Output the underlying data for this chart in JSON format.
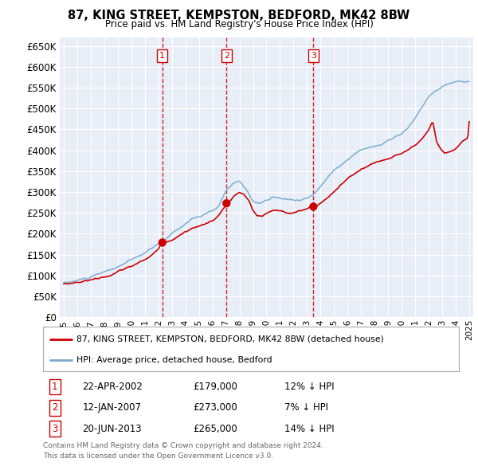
{
  "title": "87, KING STREET, KEMPSTON, BEDFORD, MK42 8BW",
  "subtitle": "Price paid vs. HM Land Registry's House Price Index (HPI)",
  "legend_label_red": "87, KING STREET, KEMPSTON, BEDFORD, MK42 8BW (detached house)",
  "legend_label_blue": "HPI: Average price, detached house, Bedford",
  "footnote1": "Contains HM Land Registry data © Crown copyright and database right 2024.",
  "footnote2": "This data is licensed under the Open Government Licence v3.0.",
  "transactions": [
    {
      "num": "1",
      "date": "22-APR-2002",
      "price": "£179,000",
      "hpi": "12% ↓ HPI"
    },
    {
      "num": "2",
      "date": "12-JAN-2007",
      "price": "£273,000",
      "hpi": "7% ↓ HPI"
    },
    {
      "num": "3",
      "date": "20-JUN-2013",
      "price": "£265,000",
      "hpi": "14% ↓ HPI"
    }
  ],
  "transaction_years": [
    2002.29,
    2007.04,
    2013.47
  ],
  "transaction_prices": [
    179000,
    273000,
    265000
  ],
  "vline_years": [
    2002.29,
    2007.04,
    2013.47
  ],
  "ylim": [
    0,
    670000
  ],
  "yticks": [
    0,
    50000,
    100000,
    150000,
    200000,
    250000,
    300000,
    350000,
    400000,
    450000,
    500000,
    550000,
    600000,
    650000
  ],
  "xlim": [
    1994.7,
    2025.3
  ],
  "bg_color": "#ffffff",
  "plot_bg_color": "#e8eef8",
  "grid_color": "#ffffff",
  "red_color": "#cc0000",
  "blue_color": "#7aabcc",
  "vline_color": "#cc0000"
}
